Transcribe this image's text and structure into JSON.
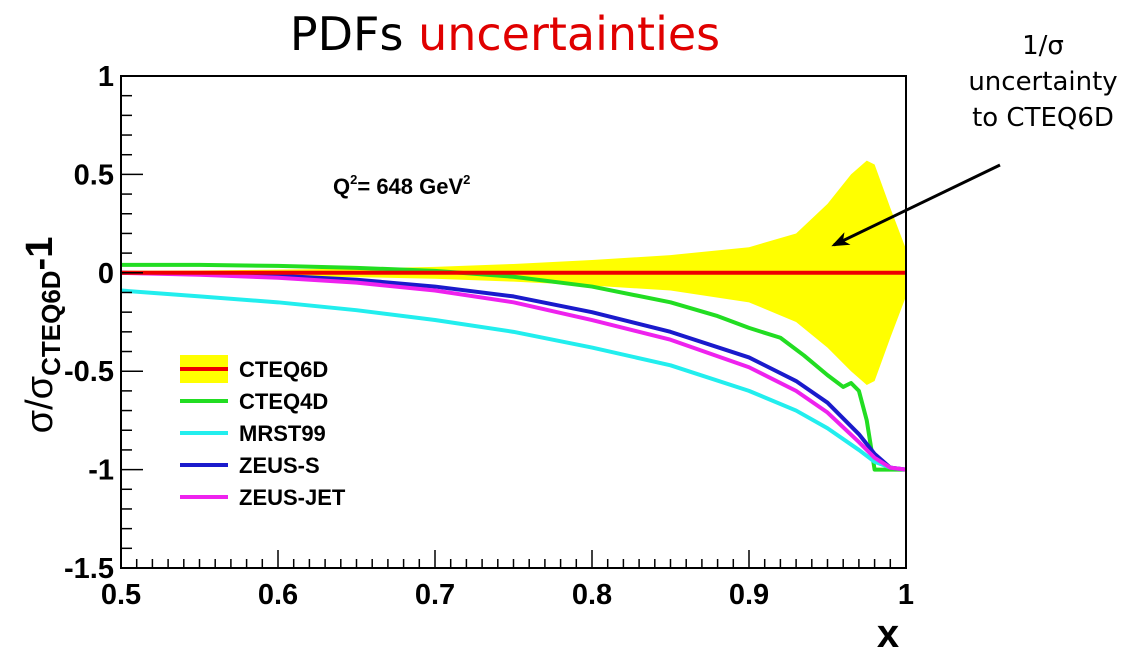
{
  "title": {
    "main": "PDFs",
    "accent": "uncertainties"
  },
  "annotation": {
    "lines": [
      "1/σ",
      "uncertainty",
      "to CTEQ6D"
    ]
  },
  "colors": {
    "title_accent": "#e00000",
    "band": "#ffff00"
  },
  "chart_data": {
    "type": "line",
    "title": "PDFs uncertainties",
    "xlabel": "x",
    "ylabel": "σ/σ_CTEQ6D-1",
    "xlim": [
      0.5,
      1.0
    ],
    "ylim": [
      -1.5,
      1.0
    ],
    "xticks": [
      "0.5",
      "0.6",
      "0.7",
      "0.8",
      "0.9",
      "1"
    ],
    "yticks": [
      "-1.5",
      "-1",
      "-0.5",
      "0",
      "0.5",
      "1"
    ],
    "grid": false,
    "legend_position": "bottom-left",
    "annotation_q2": {
      "base": "Q",
      "sup1": "2",
      "mid": "= 648 GeV",
      "sup2": "2"
    },
    "band": {
      "name": "CTEQ6D",
      "color": "#ffff00",
      "x": [
        0.5,
        0.55,
        0.6,
        0.65,
        0.7,
        0.75,
        0.8,
        0.85,
        0.9,
        0.93,
        0.95,
        0.965,
        0.975,
        0.98,
        0.99,
        1.0
      ],
      "upper": [
        0.01,
        0.012,
        0.016,
        0.022,
        0.03,
        0.045,
        0.065,
        0.09,
        0.13,
        0.2,
        0.35,
        0.5,
        0.57,
        0.55,
        0.33,
        0.12
      ],
      "lower": [
        -0.01,
        -0.012,
        -0.016,
        -0.022,
        -0.03,
        -0.045,
        -0.065,
        -0.09,
        -0.15,
        -0.25,
        -0.38,
        -0.5,
        -0.57,
        -0.55,
        -0.33,
        -0.12
      ]
    },
    "series": [
      {
        "name": "CTEQ6D",
        "color": "#ee0000",
        "x": [
          0.5,
          1.0
        ],
        "y": [
          0.0,
          0.0
        ]
      },
      {
        "name": "CTEQ4D",
        "color": "#22dd22",
        "x": [
          0.5,
          0.55,
          0.6,
          0.65,
          0.7,
          0.75,
          0.8,
          0.85,
          0.88,
          0.9,
          0.92,
          0.935,
          0.95,
          0.96,
          0.965,
          0.97,
          0.975,
          0.98,
          0.99,
          1.0
        ],
        "y": [
          0.04,
          0.04,
          0.035,
          0.025,
          0.01,
          -0.02,
          -0.07,
          -0.15,
          -0.22,
          -0.28,
          -0.33,
          -0.42,
          -0.52,
          -0.58,
          -0.56,
          -0.6,
          -0.75,
          -1.0,
          -1.0,
          -1.0
        ]
      },
      {
        "name": "MRST99",
        "color": "#22eeee",
        "x": [
          0.5,
          0.55,
          0.6,
          0.65,
          0.7,
          0.75,
          0.8,
          0.85,
          0.9,
          0.93,
          0.95,
          0.97,
          0.98,
          0.99,
          1.0
        ],
        "y": [
          -0.09,
          -0.12,
          -0.15,
          -0.19,
          -0.24,
          -0.3,
          -0.38,
          -0.47,
          -0.6,
          -0.7,
          -0.79,
          -0.9,
          -0.96,
          -0.99,
          -1.0
        ]
      },
      {
        "name": "ZEUS-S",
        "color": "#1a1acc",
        "x": [
          0.5,
          0.55,
          0.6,
          0.65,
          0.7,
          0.75,
          0.8,
          0.85,
          0.9,
          0.93,
          0.95,
          0.97,
          0.98,
          0.99,
          1.0
        ],
        "y": [
          0.0,
          -0.005,
          -0.015,
          -0.035,
          -0.07,
          -0.12,
          -0.2,
          -0.3,
          -0.43,
          -0.55,
          -0.66,
          -0.82,
          -0.92,
          -0.99,
          -1.0
        ]
      },
      {
        "name": "ZEUS-JET",
        "color": "#ee22ee",
        "x": [
          0.5,
          0.55,
          0.6,
          0.65,
          0.7,
          0.75,
          0.8,
          0.85,
          0.9,
          0.93,
          0.95,
          0.97,
          0.98,
          0.99,
          1.0
        ],
        "y": [
          0.0,
          -0.01,
          -0.025,
          -0.05,
          -0.09,
          -0.15,
          -0.24,
          -0.34,
          -0.48,
          -0.6,
          -0.71,
          -0.86,
          -0.94,
          -0.99,
          -1.0
        ]
      }
    ]
  }
}
